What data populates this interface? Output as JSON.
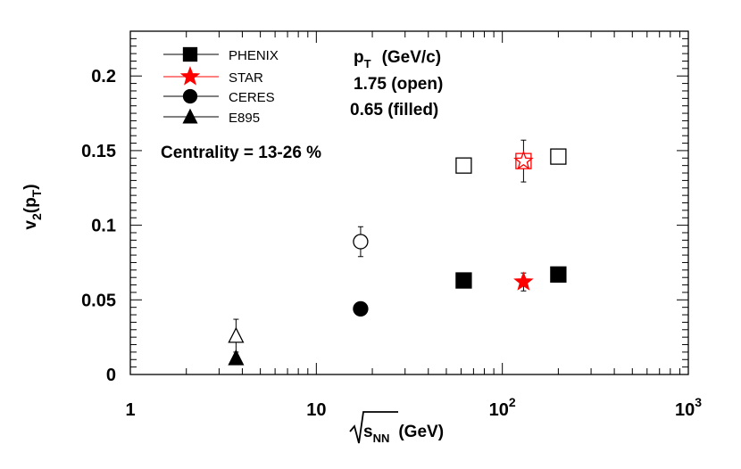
{
  "chart_data": {
    "type": "scatter",
    "xscale": "log",
    "xlim": [
      1,
      1000
    ],
    "ylim": [
      0,
      0.23
    ],
    "xlabel": {
      "root": "s",
      "sub": "NN",
      "unit": "(GeV)"
    },
    "ylabel": {
      "main": "v",
      "sub1": "2",
      "paren_open": "(p",
      "sub2": "T",
      "paren_close": ")"
    },
    "x_tick_labels": [
      {
        "value": 1,
        "label": "1"
      },
      {
        "value": 10,
        "label": "10"
      },
      {
        "value": 100,
        "base": "10",
        "exp": "2"
      },
      {
        "value": 1000,
        "base": "10",
        "exp": "3"
      }
    ],
    "y_tick_labels": [
      {
        "value": 0,
        "label": "0"
      },
      {
        "value": 0.05,
        "label": "0.05"
      },
      {
        "value": 0.1,
        "label": "0.1"
      },
      {
        "value": 0.15,
        "label": "0.15"
      },
      {
        "value": 0.2,
        "label": "0.2"
      }
    ],
    "annotations": {
      "pt_header_main": "p",
      "pt_header_sub": "T",
      "pt_header_unit": "(GeV/c)",
      "open_row": "1.75  (open)",
      "filled_row": "0.65  (filled)",
      "centrality": "Centrality = 13-26 %"
    },
    "legend": [
      {
        "name": "PHENIX",
        "marker": "square",
        "color": "#000000"
      },
      {
        "name": "STAR",
        "marker": "star",
        "color": "#ff0000"
      },
      {
        "name": "CERES",
        "marker": "circle",
        "color": "#000000"
      },
      {
        "name": "E895",
        "marker": "triangle",
        "color": "#000000"
      }
    ],
    "series": [
      {
        "name": "PHENIX",
        "marker": "square",
        "color": "#000000",
        "points": [
          {
            "x": 62,
            "y": 0.14,
            "fill": "open"
          },
          {
            "x": 200,
            "y": 0.146,
            "fill": "open"
          },
          {
            "x": 62,
            "y": 0.063,
            "fill": "filled"
          },
          {
            "x": 200,
            "y": 0.067,
            "fill": "filled"
          }
        ]
      },
      {
        "name": "STAR",
        "marker": "star",
        "color": "#ff0000",
        "points": [
          {
            "x": 130,
            "y": 0.143,
            "err": 0.014,
            "fill": "open"
          },
          {
            "x": 130,
            "y": 0.062,
            "err": 0.006,
            "fill": "filled"
          }
        ]
      },
      {
        "name": "CERES",
        "marker": "circle",
        "color": "#000000",
        "points": [
          {
            "x": 17.3,
            "y": 0.089,
            "err": 0.01,
            "fill": "open"
          },
          {
            "x": 17.3,
            "y": 0.044,
            "fill": "filled"
          }
        ]
      },
      {
        "name": "E895",
        "marker": "triangle",
        "color": "#000000",
        "points": [
          {
            "x": 3.7,
            "y": 0.026,
            "err": 0.011,
            "fill": "open"
          },
          {
            "x": 3.7,
            "y": 0.011,
            "fill": "filled"
          }
        ]
      }
    ]
  }
}
